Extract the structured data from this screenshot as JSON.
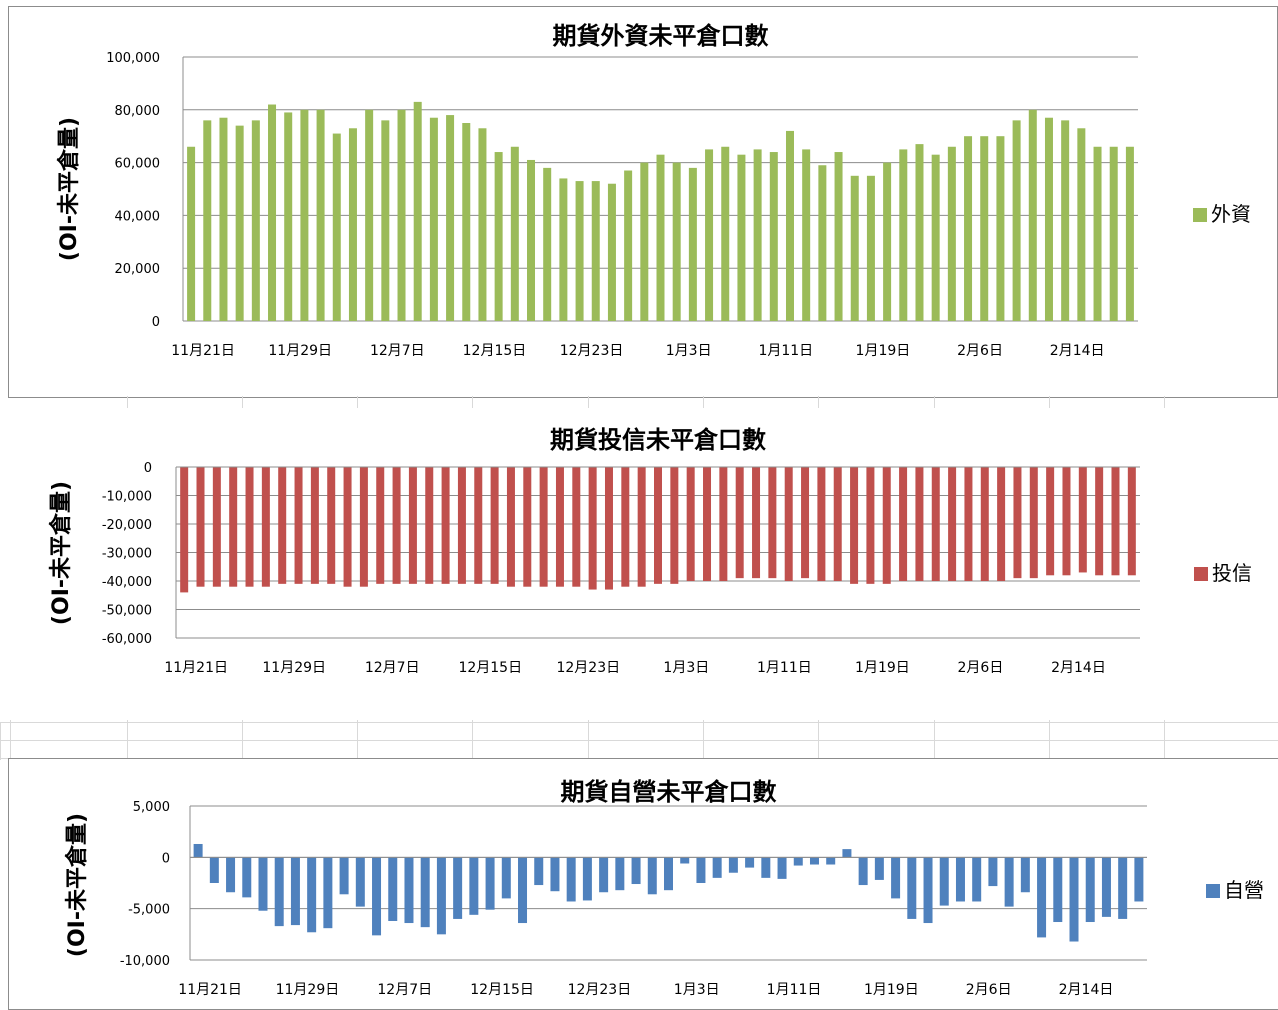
{
  "chart_data": [
    {
      "type": "bar",
      "title": "期貨外資未平倉口數",
      "ylabel": "(OI-未平倉量)",
      "xlabel": "",
      "ylim": [
        0,
        100000
      ],
      "yticks": [
        0,
        20000,
        40000,
        60000,
        80000,
        100000
      ],
      "ytick_labels": [
        "0",
        "20,000",
        "40,000",
        "60,000",
        "80,000",
        "100,000"
      ],
      "x_labels": [
        "11月21日",
        "11月29日",
        "12月7日",
        "12月15日",
        "12月23日",
        "1月3日",
        "1月11日",
        "1月19日",
        "2月6日",
        "2月14日"
      ],
      "x_label_every": 6,
      "grid": "horizontal",
      "legend": "right",
      "series": [
        {
          "name": "外資",
          "color": "#9bbb59",
          "values": [
            66000,
            76000,
            77000,
            74000,
            76000,
            82000,
            79000,
            80000,
            80000,
            71000,
            73000,
            80000,
            76000,
            80000,
            83000,
            77000,
            78000,
            75000,
            73000,
            64000,
            66000,
            61000,
            58000,
            54000,
            53000,
            53000,
            52000,
            57000,
            60000,
            63000,
            60000,
            58000,
            65000,
            66000,
            63000,
            65000,
            64000,
            72000,
            65000,
            59000,
            64000,
            55000,
            55000,
            60000,
            65000,
            67000,
            63000,
            66000,
            70000,
            70000,
            70000,
            76000,
            80000,
            77000,
            76000,
            73000,
            66000,
            66000,
            66000
          ]
        }
      ]
    },
    {
      "type": "bar",
      "title": "期貨投信未平倉口數",
      "ylabel": "(OI-未平倉量)",
      "xlabel": "",
      "ylim": [
        -60000,
        0
      ],
      "yticks": [
        0,
        -10000,
        -20000,
        -30000,
        -40000,
        -50000,
        -60000
      ],
      "ytick_labels": [
        "0",
        "-10,000",
        "-20,000",
        "-30,000",
        "-40,000",
        "-50,000",
        "-60,000"
      ],
      "x_labels": [
        "11月21日",
        "11月29日",
        "12月7日",
        "12月15日",
        "12月23日",
        "1月3日",
        "1月11日",
        "1月19日",
        "2月6日",
        "2月14日"
      ],
      "x_label_every": 6,
      "grid": "horizontal",
      "legend": "right",
      "series": [
        {
          "name": "投信",
          "color": "#c0504d",
          "values": [
            -44000,
            -42000,
            -42000,
            -42000,
            -42000,
            -42000,
            -41000,
            -41000,
            -41000,
            -41000,
            -42000,
            -42000,
            -41000,
            -41000,
            -41000,
            -41000,
            -41000,
            -41000,
            -41000,
            -41000,
            -42000,
            -42000,
            -42000,
            -42000,
            -42000,
            -43000,
            -43000,
            -42000,
            -42000,
            -41000,
            -41000,
            -40000,
            -40000,
            -40000,
            -39000,
            -39000,
            -39000,
            -40000,
            -39000,
            -40000,
            -40000,
            -41000,
            -41000,
            -41000,
            -40000,
            -40000,
            -40000,
            -40000,
            -40000,
            -40000,
            -40000,
            -39000,
            -39000,
            -38000,
            -38000,
            -37000,
            -38000,
            -38000,
            -38000
          ]
        }
      ]
    },
    {
      "type": "bar",
      "title": "期貨自營未平倉口數",
      "ylabel": "(OI-未平倉量)",
      "xlabel": "",
      "ylim": [
        -10000,
        5000
      ],
      "yticks": [
        5000,
        0,
        -5000,
        -10000
      ],
      "ytick_labels": [
        "5,000",
        "0",
        "-5,000",
        "-10,000"
      ],
      "x_labels": [
        "11月21日",
        "11月29日",
        "12月7日",
        "12月15日",
        "12月23日",
        "1月3日",
        "1月11日",
        "1月19日",
        "2月6日",
        "2月14日"
      ],
      "x_label_every": 6,
      "grid": "horizontal",
      "legend": "right",
      "series": [
        {
          "name": "自營",
          "color": "#4f81bd",
          "values": [
            1300,
            -2500,
            -3400,
            -3900,
            -5200,
            -6700,
            -6600,
            -7300,
            -6900,
            -3600,
            -4800,
            -7600,
            -6200,
            -6400,
            -6800,
            -7500,
            -6000,
            -5600,
            -5100,
            -4000,
            -6400,
            -2700,
            -3300,
            -4300,
            -4200,
            -3400,
            -3200,
            -2600,
            -3600,
            -3200,
            -600,
            -2500,
            -2000,
            -1500,
            -1000,
            -2000,
            -2100,
            -800,
            -700,
            -700,
            800,
            -2700,
            -2200,
            -4000,
            -6000,
            -6400,
            -4700,
            -4300,
            -4300,
            -2800,
            -4800,
            -3400,
            -7800,
            -6300,
            -8200,
            -6300,
            -5800,
            -6000,
            -4300
          ]
        }
      ]
    }
  ]
}
